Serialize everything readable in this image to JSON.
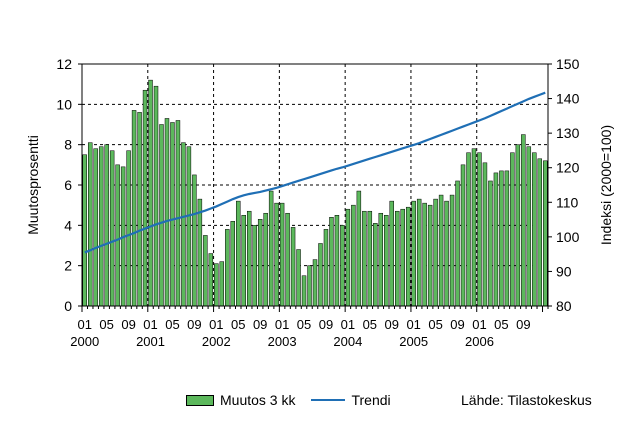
{
  "chart_data": {
    "type": "bar",
    "left_axis": {
      "label": "Muutosprosentti",
      "ylim": [
        0,
        12
      ],
      "ticks": [
        "0",
        "2",
        "4",
        "6",
        "8",
        "10",
        "12"
      ]
    },
    "right_axis": {
      "label": "Indeksi (2000=100)",
      "ylim": [
        80,
        150
      ],
      "ticks": [
        "80",
        "90",
        "100",
        "110",
        "120",
        "130",
        "140",
        "150"
      ]
    },
    "x_month_labels": [
      "01",
      "05",
      "09",
      "01",
      "05",
      "09",
      "01",
      "05",
      "09",
      "01",
      "05",
      "09",
      "01",
      "05",
      "09",
      "01",
      "05",
      "09",
      "01",
      "05",
      "09"
    ],
    "x_year_labels": [
      "2000",
      "2001",
      "2002",
      "2003",
      "2004",
      "2005",
      "2006"
    ],
    "grid": "dashed",
    "legend_position": "bottom",
    "series": [
      {
        "name": "Muutos 3 kk",
        "kind": "bar",
        "axis": "left",
        "color": "#5cb85c",
        "values": [
          7.5,
          8.1,
          7.8,
          7.9,
          8.0,
          7.7,
          7.0,
          6.9,
          7.7,
          9.7,
          9.6,
          10.7,
          11.2,
          10.9,
          9.0,
          9.3,
          9.1,
          9.2,
          8.1,
          7.9,
          6.5,
          5.3,
          3.5,
          2.6,
          2.1,
          2.2,
          3.8,
          4.2,
          5.2,
          4.5,
          4.7,
          4.0,
          4.3,
          4.6,
          5.7,
          5.1,
          5.1,
          4.6,
          3.9,
          2.8,
          1.5,
          2.0,
          2.3,
          3.1,
          3.8,
          4.4,
          4.5,
          4.0,
          4.8,
          5.0,
          5.7,
          4.7,
          4.7,
          4.1,
          4.6,
          4.5,
          5.2,
          4.7,
          4.8,
          4.9,
          5.2,
          5.3,
          5.1,
          5.0,
          5.3,
          5.5,
          5.2,
          5.5,
          6.2,
          7.0,
          7.6,
          7.8,
          7.6,
          7.1,
          6.2,
          6.6,
          6.7,
          6.7,
          7.6,
          8.0,
          8.5,
          7.9,
          7.6,
          7.3,
          7.2
        ]
      },
      {
        "name": "Trendi",
        "kind": "line",
        "axis": "right",
        "color": "#1f6fb5",
        "values": [
          95.5,
          96.1,
          96.8,
          97.4,
          98.0,
          98.6,
          99.2,
          99.9,
          100.5,
          101.1,
          101.8,
          102.4,
          103.0,
          103.6,
          104.1,
          104.6,
          105.0,
          105.4,
          105.8,
          106.2,
          106.6,
          107.1,
          107.6,
          108.2,
          108.8,
          109.5,
          110.2,
          110.9,
          111.5,
          112.0,
          112.4,
          112.7,
          113.0,
          113.4,
          113.8,
          114.2,
          114.7,
          115.2,
          115.7,
          116.2,
          116.7,
          117.2,
          117.7,
          118.2,
          118.7,
          119.2,
          119.7,
          120.1,
          120.6,
          121.1,
          121.6,
          122.1,
          122.6,
          123.1,
          123.6,
          124.1,
          124.6,
          125.1,
          125.6,
          126.1,
          126.6,
          127.1,
          127.7,
          128.3,
          128.9,
          129.5,
          130.1,
          130.7,
          131.3,
          131.9,
          132.5,
          133.1,
          133.7,
          134.3,
          135.0,
          135.7,
          136.4,
          137.1,
          137.8,
          138.5,
          139.2,
          139.9,
          140.5,
          141.1,
          141.7
        ]
      }
    ]
  },
  "legend": {
    "bar_label": "Muutos 3 kk",
    "line_label": "Trendi"
  },
  "source": "Lähde: Tilastokeskus"
}
